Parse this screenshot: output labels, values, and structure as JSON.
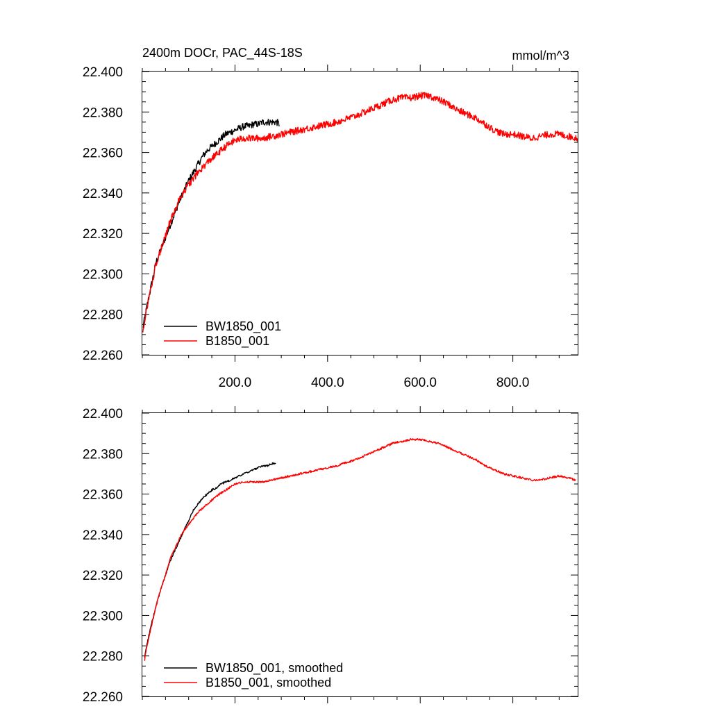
{
  "chart_data": [
    {
      "type": "line",
      "title": "2400m DOCr, PAC_44S-18S",
      "units_label": "mmol/m^3",
      "xlabel": "",
      "ylabel": "",
      "xlim": [
        0,
        940
      ],
      "ylim": [
        22.26,
        22.4
      ],
      "x_ticks": [
        200,
        400,
        600,
        800
      ],
      "x_tick_labels": [
        "200.0",
        "400.0",
        "600.0",
        "800.0"
      ],
      "y_ticks": [
        22.26,
        22.28,
        22.3,
        22.32,
        22.34,
        22.36,
        22.38,
        22.4
      ],
      "y_tick_labels": [
        "22.260",
        "22.280",
        "22.300",
        "22.320",
        "22.340",
        "22.360",
        "22.380",
        "22.400"
      ],
      "legend_position": "bottom-left",
      "grid": false,
      "noise": 0.0017,
      "series": [
        {
          "name": "BW1850_001",
          "color": "#000000",
          "x": [
            1,
            10,
            20,
            30,
            40,
            50,
            60,
            70,
            80,
            90,
            100,
            110,
            120,
            130,
            140,
            150,
            160,
            170,
            180,
            190,
            200,
            210,
            220,
            230,
            240,
            250,
            260,
            270,
            280,
            290,
            296
          ],
          "y": [
            22.273,
            22.284,
            22.295,
            22.306,
            22.312,
            22.318,
            22.324,
            22.33,
            22.336,
            22.341,
            22.346,
            22.35,
            22.354,
            22.358,
            22.361,
            22.363,
            22.365,
            22.367,
            22.369,
            22.37,
            22.371,
            22.372,
            22.373,
            22.373,
            22.374,
            22.374,
            22.375,
            22.375,
            22.375,
            22.375,
            22.374
          ]
        },
        {
          "name": "B1850_001",
          "color": "#ff0000",
          "x": [
            1,
            10,
            20,
            30,
            40,
            50,
            60,
            70,
            80,
            90,
            100,
            120,
            140,
            160,
            180,
            200,
            220,
            240,
            260,
            280,
            300,
            340,
            380,
            420,
            460,
            500,
            540,
            560,
            580,
            600,
            620,
            640,
            660,
            680,
            700,
            720,
            740,
            760,
            780,
            800,
            820,
            840,
            860,
            880,
            900,
            920,
            940
          ],
          "y": [
            22.272,
            22.283,
            22.294,
            22.305,
            22.312,
            22.319,
            22.326,
            22.331,
            22.337,
            22.341,
            22.344,
            22.35,
            22.355,
            22.359,
            22.363,
            22.366,
            22.367,
            22.367,
            22.367,
            22.368,
            22.369,
            22.371,
            22.373,
            22.375,
            22.378,
            22.382,
            22.386,
            22.387,
            22.387,
            22.388,
            22.388,
            22.386,
            22.384,
            22.381,
            22.379,
            22.377,
            22.374,
            22.371,
            22.369,
            22.369,
            22.368,
            22.367,
            22.368,
            22.369,
            22.369,
            22.368,
            22.367
          ]
        }
      ]
    },
    {
      "type": "line",
      "title": "",
      "xlabel": "",
      "ylabel": "",
      "xlim": [
        0,
        940
      ],
      "ylim": [
        22.26,
        22.4
      ],
      "x_ticks": [
        200,
        400,
        600,
        800
      ],
      "x_tick_labels": [],
      "y_ticks": [
        22.26,
        22.28,
        22.3,
        22.32,
        22.34,
        22.36,
        22.38,
        22.4
      ],
      "y_tick_labels": [
        "22.260",
        "22.280",
        "22.300",
        "22.320",
        "22.340",
        "22.360",
        "22.380",
        "22.400"
      ],
      "legend_position": "bottom-left",
      "grid": false,
      "noise": 0.0005,
      "series": [
        {
          "name": "BW1850_001, smoothed",
          "color": "#000000",
          "x": [
            5,
            10,
            20,
            30,
            40,
            50,
            60,
            70,
            80,
            90,
            100,
            110,
            120,
            130,
            140,
            150,
            160,
            170,
            180,
            190,
            200,
            210,
            220,
            230,
            240,
            250,
            260,
            270,
            280,
            288
          ],
          "y": [
            22.279,
            22.286,
            22.296,
            22.305,
            22.313,
            22.32,
            22.327,
            22.332,
            22.337,
            22.342,
            22.347,
            22.352,
            22.355,
            22.358,
            22.36,
            22.362,
            22.363,
            22.365,
            22.366,
            22.367,
            22.368,
            22.369,
            22.37,
            22.371,
            22.372,
            22.373,
            22.374,
            22.374,
            22.375,
            22.375
          ]
        },
        {
          "name": "B1850_001, smoothed",
          "color": "#ff0000",
          "x": [
            5,
            10,
            20,
            30,
            40,
            50,
            60,
            70,
            80,
            90,
            100,
            120,
            140,
            160,
            180,
            200,
            220,
            240,
            260,
            280,
            300,
            340,
            380,
            420,
            460,
            500,
            540,
            560,
            580,
            600,
            620,
            640,
            660,
            680,
            700,
            720,
            740,
            760,
            780,
            800,
            820,
            840,
            860,
            880,
            900,
            920,
            935
          ],
          "y": [
            22.278,
            22.285,
            22.295,
            22.305,
            22.313,
            22.32,
            22.328,
            22.333,
            22.338,
            22.342,
            22.345,
            22.351,
            22.355,
            22.359,
            22.362,
            22.365,
            22.366,
            22.366,
            22.366,
            22.367,
            22.368,
            22.37,
            22.372,
            22.374,
            22.377,
            22.381,
            22.385,
            22.386,
            22.387,
            22.387,
            22.386,
            22.385,
            22.383,
            22.381,
            22.379,
            22.377,
            22.374,
            22.372,
            22.37,
            22.369,
            22.368,
            22.367,
            22.367,
            22.368,
            22.369,
            22.368,
            22.367
          ]
        }
      ]
    }
  ]
}
